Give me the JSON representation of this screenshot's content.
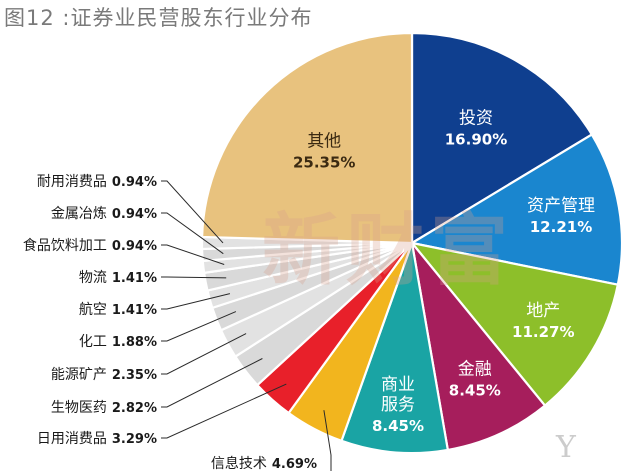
{
  "chart_data": {
    "type": "pie",
    "title": "图12 :证券业民营股东行业分布",
    "slices": [
      {
        "label": "投资",
        "pct_text": "16.90%",
        "value": 16.9,
        "color": "#0f3f8f",
        "label_style": "inside"
      },
      {
        "label": "资产管理",
        "pct_text": "12.21%",
        "value": 12.21,
        "color": "#1a86cf",
        "label_style": "inside"
      },
      {
        "label": "地产",
        "pct_text": "11.27%",
        "value": 11.27,
        "color": "#8dbf2a",
        "label_style": "inside"
      },
      {
        "label": "金融",
        "pct_text": "8.45%",
        "value": 8.45,
        "color": "#a61e5c",
        "label_style": "inside"
      },
      {
        "label": "商业服务",
        "label_lines": [
          "商业",
          "服务"
        ],
        "pct_text": "8.45%",
        "value": 8.45,
        "color": "#1aa4a4",
        "label_style": "inside"
      },
      {
        "label": "信息技术",
        "pct_text": "4.69%",
        "value": 4.69,
        "color": "#f2b51e",
        "label_style": "outside"
      },
      {
        "label": "日用消费品",
        "pct_text": "3.29%",
        "value": 3.29,
        "color": "#e8202a",
        "label_style": "outside"
      },
      {
        "label": "生物医药",
        "pct_text": "2.82%",
        "value": 2.82,
        "color": "#d9d9d9",
        "label_style": "outside"
      },
      {
        "label": "能源矿产",
        "pct_text": "2.35%",
        "value": 2.35,
        "color": "#e2e2e2",
        "label_style": "outside"
      },
      {
        "label": "化工",
        "pct_text": "1.88%",
        "value": 1.88,
        "color": "#d9d9d9",
        "label_style": "outside"
      },
      {
        "label": "航空",
        "pct_text": "1.41%",
        "value": 1.41,
        "color": "#e2e2e2",
        "label_style": "outside"
      },
      {
        "label": "物流",
        "pct_text": "1.41%",
        "value": 1.41,
        "color": "#d9d9d9",
        "label_style": "outside"
      },
      {
        "label": "食品饮料加工",
        "pct_text": "0.94%",
        "value": 0.94,
        "color": "#e2e2e2",
        "label_style": "outside"
      },
      {
        "label": "金属冶炼",
        "pct_text": "0.94%",
        "value": 0.94,
        "color": "#d9d9d9",
        "label_style": "outside"
      },
      {
        "label": "耐用消费品",
        "pct_text": "0.94%",
        "value": 0.94,
        "color": "#e2e2e2",
        "label_style": "outside"
      },
      {
        "label": "其他",
        "pct_text": "25.35%",
        "value": 25.35,
        "color": "#e8c27e",
        "label_style": "inside-dark"
      }
    ]
  },
  "watermark": {
    "text": "新财富"
  },
  "logo": {
    "text": "Y"
  }
}
